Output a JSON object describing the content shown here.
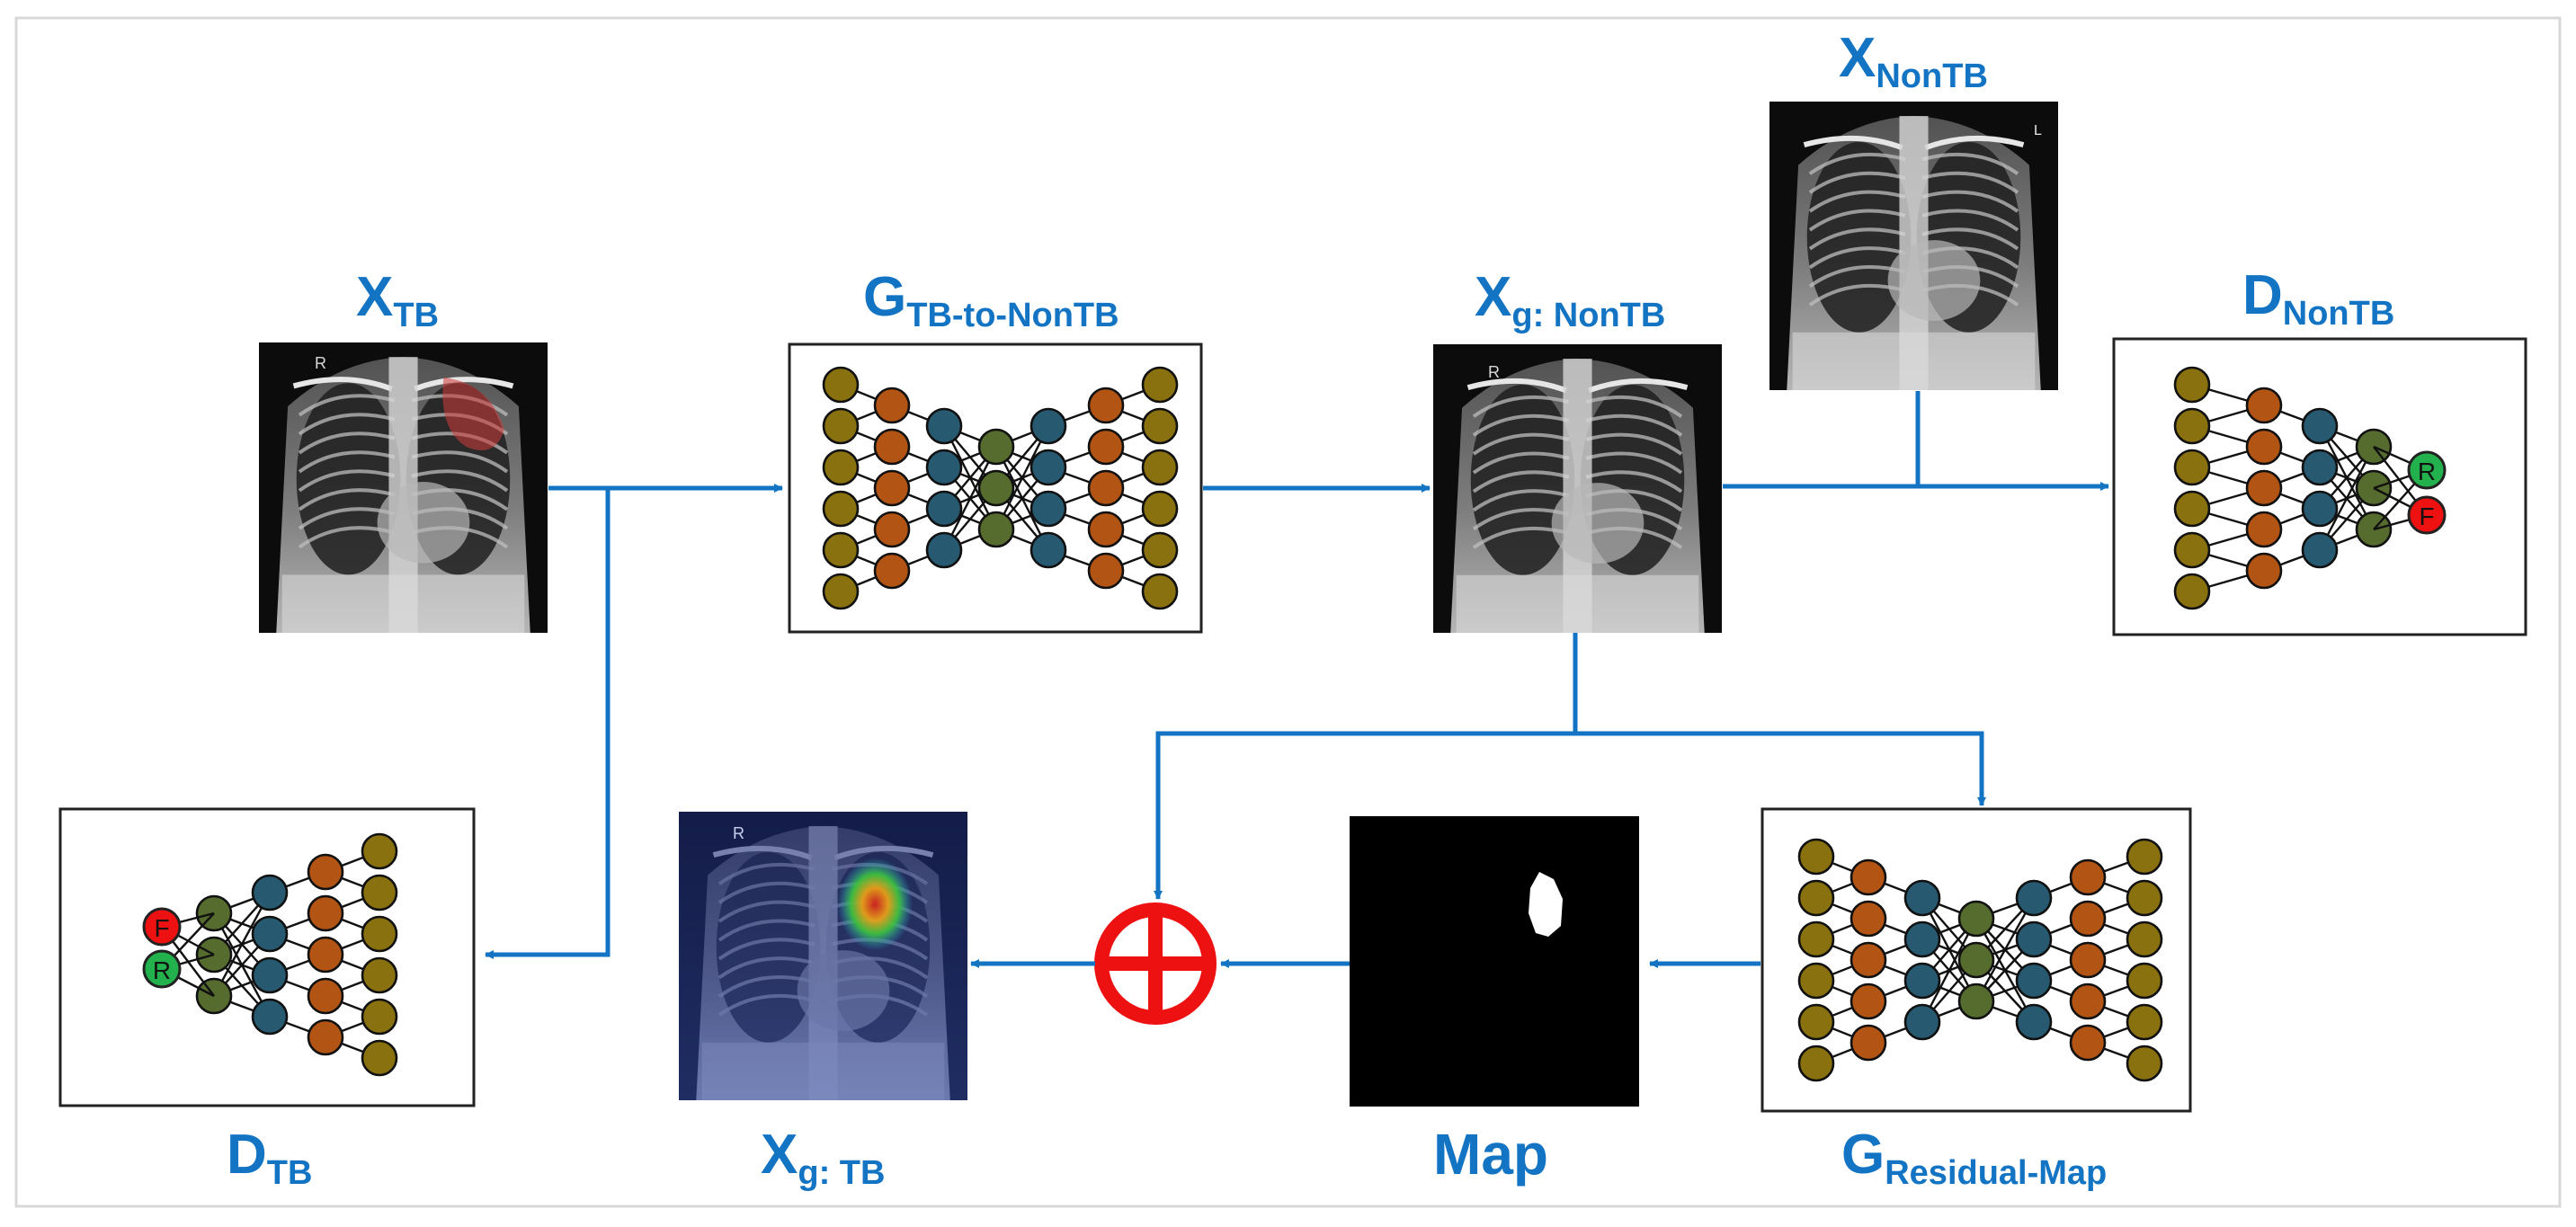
{
  "diagram": {
    "colors": {
      "arrow": "#1474c4",
      "label": "#1474c4",
      "sum_symbol": "#ee1111",
      "node_olive": "#8a7110",
      "node_orange": "#b25414",
      "node_teal": "#275a70",
      "node_green": "#566b2e",
      "node_real": "#22b14c",
      "node_fake": "#ee1111"
    },
    "labels": {
      "x_tb": {
        "main": "X",
        "sub": "TB"
      },
      "generator_tb_to_nontb": {
        "main": "G",
        "sub": "TB-to-NonTB"
      },
      "x_g_nontb": {
        "main": "X",
        "sub": "g: NonTB"
      },
      "x_nontb": {
        "main": "X",
        "sub": "NonTB"
      },
      "discriminator_nontb": {
        "main": "D",
        "sub": "NonTB"
      },
      "discriminator_tb": {
        "main": "D",
        "sub": "TB"
      },
      "x_g_tb": {
        "main": "X",
        "sub": "g: TB"
      },
      "map": {
        "main": "Map"
      },
      "generator_residual_map": {
        "main": "G",
        "sub": "Residual-Map"
      }
    },
    "output_nodes": {
      "real": "R",
      "fake": "F"
    },
    "xray_marker": {
      "r": "R",
      "l": "L"
    }
  }
}
